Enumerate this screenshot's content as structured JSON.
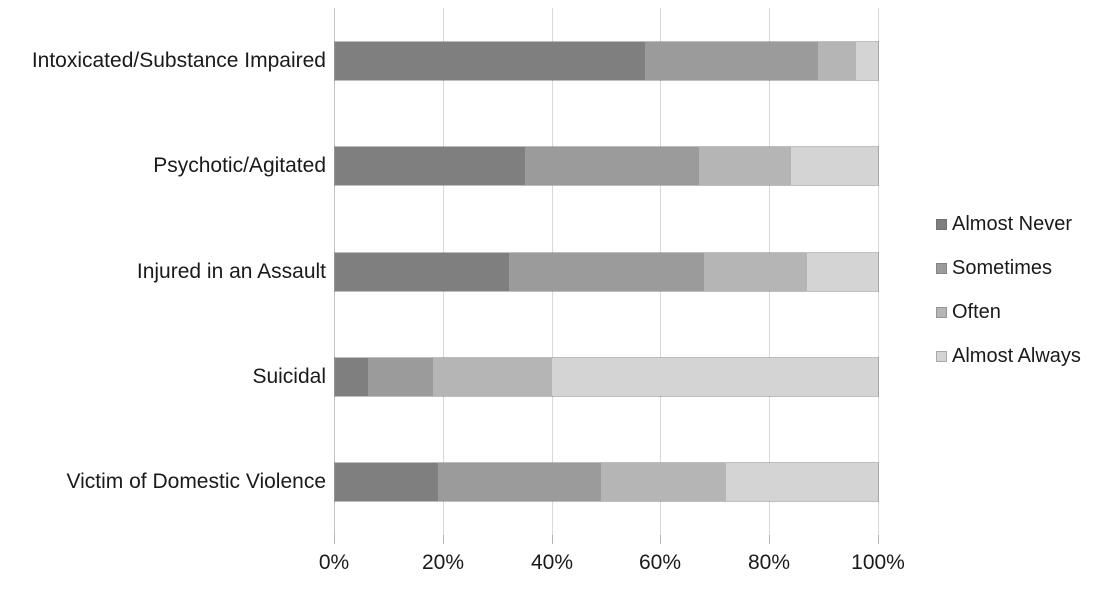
{
  "chart_data": {
    "type": "bar",
    "orientation": "horizontal",
    "stacked": true,
    "title": "",
    "xlabel": "",
    "ylabel": "",
    "categories": [
      "Intoxicated/Substance Impaired",
      "Psychotic/Agitated",
      "Injured in an Assault",
      "Suicidal",
      "Victim of Domestic Violence"
    ],
    "series": [
      {
        "name": "Almost Never",
        "color": "#7f7f7f",
        "values": [
          57,
          35,
          32,
          6,
          19
        ]
      },
      {
        "name": "Sometimes",
        "color": "#9b9b9b",
        "values": [
          32,
          32,
          36,
          12,
          30
        ]
      },
      {
        "name": "Often",
        "color": "#b5b5b5",
        "values": [
          7,
          17,
          19,
          22,
          23
        ]
      },
      {
        "name": "Almost Always",
        "color": "#d4d4d4",
        "values": [
          4,
          16,
          13,
          60,
          28
        ]
      }
    ],
    "x_ticks": [
      "0%",
      "20%",
      "40%",
      "60%",
      "80%",
      "100%"
    ],
    "xlim": [
      0,
      100
    ],
    "grid": "vertical",
    "gridline_color": "#d9d9d9",
    "legend_position": "right"
  }
}
